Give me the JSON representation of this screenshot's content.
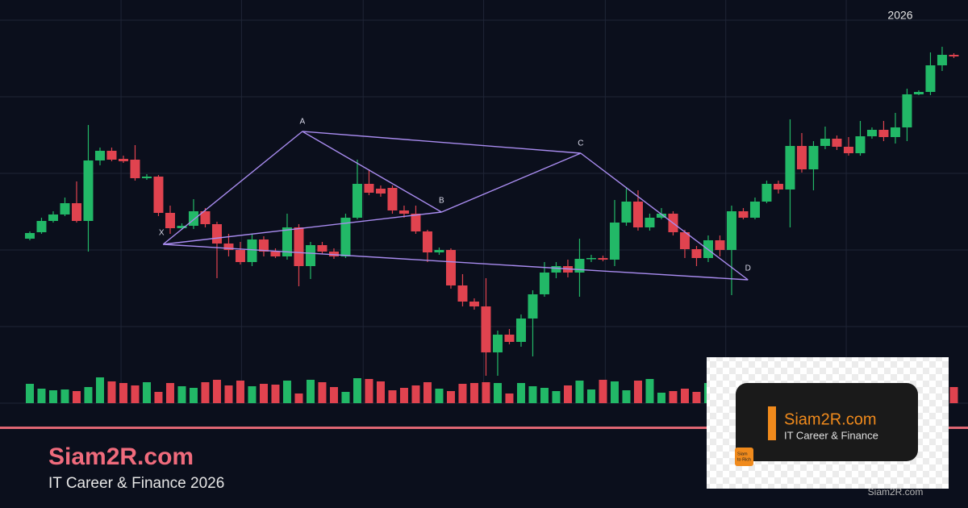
{
  "chart_data": {
    "type": "candlestick",
    "x_axis_label": "2026",
    "x": [
      0,
      1,
      2,
      3,
      4,
      5,
      6,
      7,
      8,
      9,
      10,
      11,
      12,
      13,
      14,
      15,
      16,
      17,
      18,
      19,
      20,
      21,
      22,
      23,
      24,
      25,
      26,
      27,
      28,
      29,
      30,
      31,
      32,
      33,
      34,
      35,
      36,
      37,
      38,
      39,
      40,
      41,
      42,
      43,
      44,
      45,
      46,
      47,
      48,
      49,
      50,
      51,
      52,
      53,
      54,
      55,
      56,
      57,
      58,
      59,
      60,
      61,
      62,
      63,
      64,
      65,
      66,
      67,
      68,
      69,
      70,
      71,
      72,
      73,
      74,
      75,
      76,
      77,
      78,
      79
    ],
    "open": [
      204,
      212,
      226,
      234,
      248,
      226,
      301,
      313,
      303,
      302,
      279,
      281,
      236,
      217,
      220,
      238,
      222,
      198,
      190,
      175,
      203,
      188,
      182,
      218,
      170,
      196,
      188,
      182,
      230,
      272,
      266,
      267,
      239,
      235,
      213,
      187,
      190,
      146,
      126,
      120,
      63,
      85,
      76,
      105,
      135,
      162,
      170,
      162,
      179,
      180,
      178,
      224,
      250,
      218,
      230,
      235,
      212,
      191,
      180,
      202,
      190,
      238,
      230,
      250,
      272,
      265,
      319,
      290,
      319,
      328,
      318,
      310,
      331,
      339,
      330,
      342,
      383,
      386,
      419,
      432
    ],
    "high": [
      213,
      230,
      238,
      255,
      275,
      345,
      317,
      317,
      307,
      320,
      284,
      283,
      245,
      223,
      253,
      242,
      225,
      210,
      200,
      210,
      207,
      192,
      235,
      222,
      200,
      200,
      192,
      235,
      302,
      290,
      270,
      270,
      245,
      245,
      215,
      193,
      192,
      160,
      130,
      155,
      90,
      92,
      110,
      140,
      175,
      175,
      178,
      204,
      184,
      183,
      252,
      268,
      264,
      235,
      242,
      238,
      215,
      195,
      208,
      208,
      245,
      242,
      255,
      276,
      276,
      352,
      335,
      325,
      343,
      332,
      330,
      350,
      342,
      350,
      360,
      390,
      388,
      435,
      442,
      434
    ],
    "low": [
      202,
      210,
      224,
      232,
      224,
      188,
      295,
      300,
      298,
      276,
      277,
      232,
      210,
      215,
      216,
      218,
      155,
      182,
      172,
      170,
      182,
      180,
      178,
      145,
      154,
      185,
      179,
      180,
      228,
      258,
      256,
      235,
      230,
      210,
      175,
      184,
      142,
      120,
      116,
      34,
      34,
      73,
      70,
      58,
      132,
      155,
      156,
      132,
      175,
      176,
      170,
      220,
      214,
      214,
      228,
      208,
      180,
      170,
      175,
      182,
      134,
      228,
      228,
      248,
      260,
      218,
      286,
      264,
      315,
      314,
      307,
      307,
      328,
      325,
      322,
      325,
      382,
      382,
      412,
      428
    ],
    "close": [
      211,
      226,
      234,
      248,
      226,
      301,
      313,
      302,
      300,
      279,
      281,
      236,
      217,
      220,
      238,
      222,
      198,
      190,
      175,
      203,
      188,
      182,
      218,
      170,
      196,
      188,
      182,
      230,
      272,
      261,
      260,
      239,
      235,
      213,
      187,
      190,
      146,
      126,
      120,
      63,
      85,
      76,
      105,
      135,
      162,
      170,
      162,
      179,
      180,
      178,
      224,
      250,
      218,
      230,
      235,
      212,
      191,
      180,
      202,
      190,
      238,
      230,
      250,
      272,
      265,
      319,
      290,
      319,
      328,
      318,
      310,
      331,
      339,
      330,
      342,
      383,
      386,
      419,
      432,
      430
    ],
    "volume": [
      24,
      18,
      16,
      17,
      15,
      20,
      32,
      27,
      25,
      22,
      26,
      14,
      25,
      21,
      19,
      26,
      29,
      22,
      28,
      21,
      24,
      23,
      28,
      12,
      29,
      26,
      20,
      14,
      31,
      30,
      27,
      16,
      19,
      22,
      26,
      18,
      15,
      24,
      25,
      26,
      25,
      12,
      25,
      21,
      19,
      15,
      22,
      28,
      17,
      29,
      27,
      16,
      28,
      30,
      13,
      15,
      18,
      14,
      25,
      18,
      31,
      22,
      20,
      19,
      24,
      18,
      26,
      21,
      17,
      23,
      20,
      28,
      16,
      22,
      19,
      25,
      18,
      21,
      26,
      20
    ],
    "up_color": "#22b867",
    "down_color": "#e0434f",
    "xlim": [
      -2.55,
      80.21
    ],
    "xticks": [
      7.8,
      18.1,
      28.5,
      38.8,
      49.2,
      59.5,
      69.8
    ],
    "ylim": [
      0,
      500
    ],
    "yticks": [
      0,
      95,
      190,
      285,
      380,
      475
    ],
    "y2lim": [
      0,
      500
    ],
    "grid": true,
    "pattern": {
      "color": "#a98cf0",
      "labels": [
        "X",
        "A",
        "B",
        "C",
        "D"
      ],
      "x": [
        11.4,
        23.3,
        35.2,
        47.1,
        61.4
      ],
      "y": [
        197,
        337,
        237,
        310,
        153
      ]
    }
  },
  "footer": {
    "site": "Siam2R.com",
    "tagline": "IT Career & Finance 2026"
  },
  "logo": {
    "site": "Siam2R.com",
    "tagline": "IT Career & Finance",
    "badge": [
      "Siam",
      "to Rich"
    ],
    "watermark": "Siam2R.com"
  }
}
